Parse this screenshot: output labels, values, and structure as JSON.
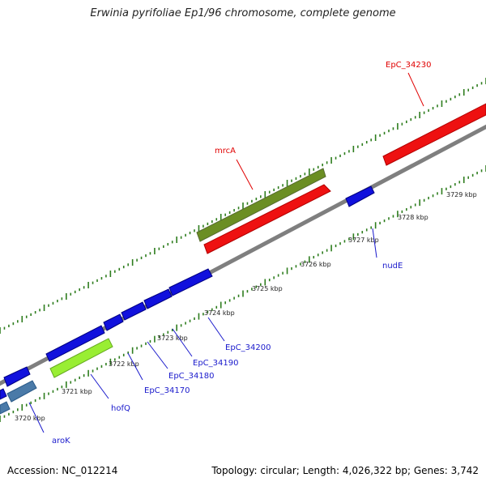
{
  "title": "Erwinia pyrifoliae Ep1/96 chromosome, complete genome",
  "footer": {
    "accession": "Accession: NC_012214",
    "summary": "Topology: circular; Length: 4,026,322 bp; Genes: 3,742"
  },
  "colors": {
    "backbone": "#7f7f7f",
    "tick": "#2e7d1e",
    "kbp_label": "#222222",
    "gene_label_blue": "#1a1acc",
    "gene_label_red": "#e00000"
  },
  "kbp_labels": [
    "3720 kbp",
    "3721 kbp",
    "3722 kbp",
    "3723 kbp",
    "3724 kbp",
    "3725 kbp",
    "3726 kbp",
    "3727 kbp",
    "3728 kbp",
    "3729 kbp"
  ],
  "genes": [
    {
      "label": "aroK",
      "color_name": "steel-blue"
    },
    {
      "label": "hofQ",
      "color_name": "lime-green"
    },
    {
      "label": "EpC_34170",
      "color_name": "blue"
    },
    {
      "label": "EpC_34180",
      "color_name": "blue"
    },
    {
      "label": "EpC_34190",
      "color_name": "blue"
    },
    {
      "label": "EpC_34200",
      "color_name": "blue"
    },
    {
      "label": "nudE",
      "color_name": "blue"
    },
    {
      "label": "mrcA",
      "color_name": "olive-green"
    },
    {
      "label": "EpC_34230",
      "color_name": "red"
    }
  ]
}
